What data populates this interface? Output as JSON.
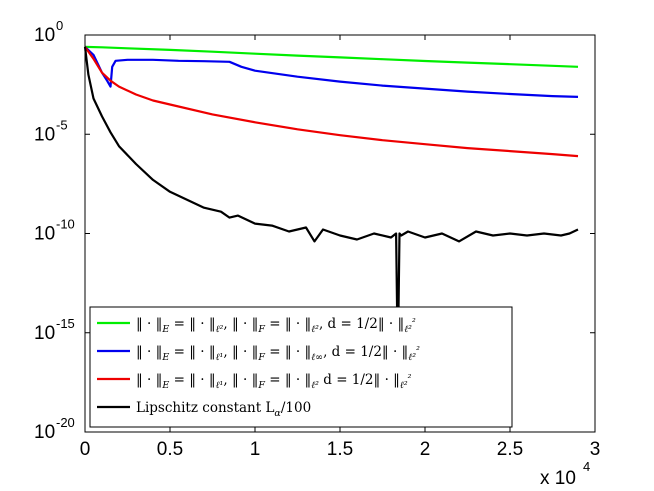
{
  "chart_data": {
    "type": "line",
    "title": "",
    "xlabel": "",
    "ylabel": "",
    "x_scale_note": "x 10",
    "x_scale_exponent": "4",
    "xlim": [
      0,
      3
    ],
    "ylim_log10": [
      -20,
      0
    ],
    "y_scale": "log",
    "grid": false,
    "legend_position": "lower-left",
    "x_ticks": [
      "0",
      "0.5",
      "1",
      "1.5",
      "2",
      "2.5",
      "3"
    ],
    "x_tick_values": [
      0,
      0.5,
      1,
      1.5,
      2,
      2.5,
      3
    ],
    "y_ticks": [
      {
        "base": "10",
        "exp": "0",
        "value": 0
      },
      {
        "base": "10",
        "exp": "-5",
        "value": -5
      },
      {
        "base": "10",
        "exp": "-10",
        "value": -10
      },
      {
        "base": "10",
        "exp": "-15",
        "value": -15
      },
      {
        "base": "10",
        "exp": "-20",
        "value": -20
      }
    ],
    "series": [
      {
        "name_parts": [
          "‖ · ‖",
          "E",
          " = ‖ · ‖",
          "ℓ²",
          ", ‖ · ‖",
          "F",
          " = ‖ · ‖",
          "ℓ²",
          ", d = 1/2‖ · ‖",
          "ℓ²",
          "²"
        ],
        "color": "#00ee00",
        "x": [
          0,
          0.1,
          0.25,
          0.5,
          0.75,
          1.0,
          1.25,
          1.5,
          1.75,
          2.0,
          2.25,
          2.5,
          2.75,
          2.9
        ],
        "log10_y": [
          -0.6,
          -0.62,
          -0.67,
          -0.75,
          -0.84,
          -0.94,
          -1.04,
          -1.13,
          -1.22,
          -1.31,
          -1.39,
          -1.47,
          -1.55,
          -1.6
        ]
      },
      {
        "name_parts": [
          "‖ · ‖",
          "E",
          " = ‖ · ‖",
          "ℓ¹",
          ", ‖ · ‖",
          "F",
          " = ‖ · ‖",
          "ℓ∞",
          ", d = 1/2‖ · ‖",
          "ℓ²",
          "²"
        ],
        "color": "#0000ee",
        "x": [
          0,
          0.05,
          0.1,
          0.13,
          0.15,
          0.16,
          0.18,
          0.25,
          0.4,
          0.55,
          0.7,
          0.85,
          0.92,
          1.0,
          1.25,
          1.5,
          1.75,
          2.0,
          2.25,
          2.5,
          2.75,
          2.9
        ],
        "log10_y": [
          -0.6,
          -1.0,
          -1.9,
          -2.3,
          -2.6,
          -1.6,
          -1.3,
          -1.25,
          -1.25,
          -1.3,
          -1.32,
          -1.35,
          -1.6,
          -1.8,
          -2.1,
          -2.35,
          -2.55,
          -2.7,
          -2.85,
          -2.97,
          -3.08,
          -3.12
        ]
      },
      {
        "name_parts": [
          "‖ · ‖",
          "E",
          " = ‖ · ‖",
          "ℓ¹",
          ", ‖ · ‖",
          "F",
          " = ‖ · ‖",
          "ℓ²",
          " d = 1/2‖ · ‖",
          "ℓ²",
          "²"
        ],
        "color": "#ee0000",
        "x": [
          0,
          0.05,
          0.1,
          0.15,
          0.2,
          0.3,
          0.4,
          0.5,
          0.75,
          1.0,
          1.25,
          1.5,
          1.75,
          2.0,
          2.25,
          2.5,
          2.75,
          2.9
        ],
        "log10_y": [
          -0.6,
          -1.2,
          -1.9,
          -2.3,
          -2.6,
          -3.0,
          -3.3,
          -3.5,
          -4.0,
          -4.4,
          -4.75,
          -5.05,
          -5.3,
          -5.5,
          -5.7,
          -5.85,
          -6.0,
          -6.1
        ]
      },
      {
        "name": "Lipschitz constant L",
        "name_sub": "α",
        "name_tail": "/100",
        "color": "#000000",
        "x": [
          0,
          0.02,
          0.05,
          0.1,
          0.15,
          0.2,
          0.3,
          0.4,
          0.5,
          0.6,
          0.7,
          0.8,
          0.85,
          0.9,
          1.0,
          1.1,
          1.2,
          1.3,
          1.35,
          1.4,
          1.5,
          1.6,
          1.7,
          1.8,
          1.83,
          1.84,
          1.85,
          1.86,
          1.9,
          2.0,
          2.1,
          2.2,
          2.3,
          2.4,
          2.5,
          2.6,
          2.7,
          2.8,
          2.85,
          2.9
        ],
        "log10_y": [
          -0.6,
          -2.0,
          -3.2,
          -4.1,
          -4.9,
          -5.6,
          -6.5,
          -7.3,
          -7.9,
          -8.3,
          -8.7,
          -8.9,
          -9.2,
          -9.1,
          -9.5,
          -9.6,
          -9.9,
          -9.7,
          -10.4,
          -9.8,
          -10.1,
          -10.3,
          -10.0,
          -10.2,
          -10.0,
          -16.5,
          -10.0,
          -10.1,
          -9.9,
          -10.2,
          -10.0,
          -10.4,
          -9.9,
          -10.1,
          -10.0,
          -10.1,
          -10.0,
          -10.1,
          -10.0,
          -9.8
        ]
      }
    ]
  }
}
